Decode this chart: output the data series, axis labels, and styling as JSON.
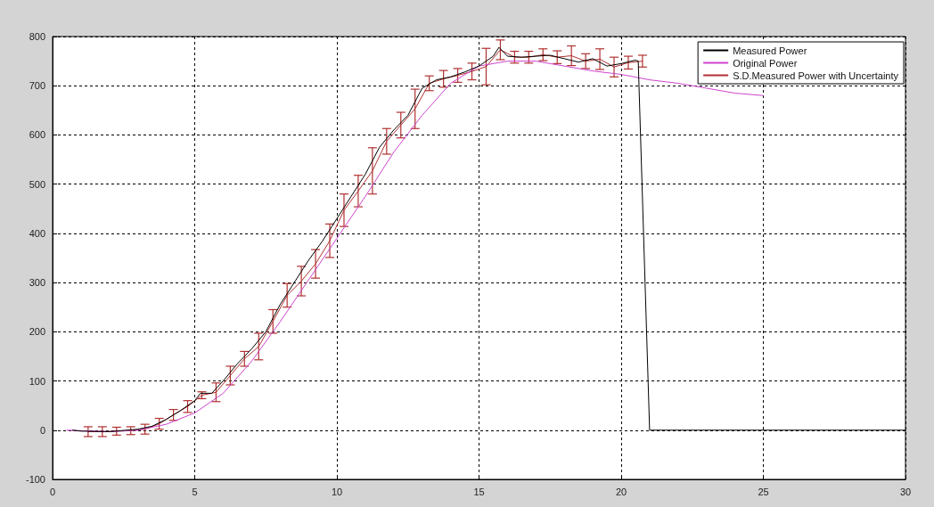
{
  "chart_data": {
    "type": "line",
    "xlim": [
      0,
      30
    ],
    "xticks": [
      0,
      5,
      10,
      15,
      20,
      25,
      30
    ],
    "ylim": [
      -100,
      800
    ],
    "yticks": [
      -100,
      0,
      100,
      200,
      300,
      400,
      500,
      600,
      700,
      800
    ],
    "grid": true,
    "legend": "top right",
    "marker": "none",
    "line_style": "solid",
    "series": [
      {
        "name": "Measured Power",
        "color": "#000000",
        "x": [
          0.7,
          1,
          2,
          3,
          3.5,
          4,
          4.5,
          5,
          5.2,
          5.6,
          6,
          6.5,
          7,
          7.5,
          8,
          8.5,
          9,
          9.5,
          10,
          10.5,
          11,
          11.5,
          12,
          12.5,
          13,
          13.5,
          14,
          14.5,
          15,
          15.5,
          15.7,
          16,
          16.5,
          17,
          17.5,
          18,
          18.5,
          19,
          19.5,
          20,
          20.5,
          20.6,
          21,
          30
        ],
        "values": [
          0,
          -2,
          -3,
          2,
          8,
          22,
          40,
          60,
          75,
          75,
          100,
          135,
          165,
          200,
          255,
          300,
          345,
          385,
          430,
          475,
          520,
          575,
          610,
          640,
          695,
          712,
          718,
          728,
          740,
          760,
          778,
          760,
          758,
          760,
          762,
          755,
          748,
          755,
          740,
          745,
          752,
          750,
          0,
          0
        ]
      },
      {
        "name": "Original Power",
        "color": "#cc44cc",
        "x": [
          0.5,
          2,
          3,
          4,
          5,
          6,
          7,
          8,
          9,
          10,
          11,
          12,
          13,
          14,
          15,
          16,
          17,
          18,
          19,
          20,
          21,
          22,
          23,
          24,
          25
        ],
        "values": [
          0,
          -3,
          0,
          12,
          35,
          75,
          140,
          220,
          305,
          390,
          475,
          565,
          640,
          705,
          740,
          750,
          750,
          740,
          730,
          723,
          712,
          705,
          695,
          685,
          680
        ]
      },
      {
        "name": "S.D.Measured Power with Uncertainty",
        "color": "#b03030",
        "x": [
          1.25,
          1.75,
          2.25,
          2.75,
          3.25,
          3.75,
          4.25,
          4.75,
          5.25,
          5.75,
          6.25,
          6.75,
          7.25,
          7.75,
          8.25,
          8.75,
          9.25,
          9.75,
          10.25,
          10.75,
          11.25,
          11.75,
          12.25,
          12.75,
          13.25,
          13.75,
          14.25,
          14.75,
          15.25,
          15.75,
          16.25,
          16.75,
          17.25,
          17.75,
          18.25,
          18.75,
          19.25,
          19.75,
          20.25,
          20.75
        ],
        "values": [
          -3,
          -3,
          -2,
          -1,
          2,
          13,
          31,
          48,
          71,
          77,
          111,
          145,
          170,
          221,
          274,
          303,
          338,
          385,
          447,
          486,
          527,
          587,
          620,
          653,
          705,
          714,
          721,
          729,
          739,
          773,
          758,
          758,
          763,
          758,
          761,
          750,
          754,
          738,
          747,
          750
        ],
        "errors": [
          10,
          10,
          8,
          8,
          10,
          11,
          11,
          12,
          7,
          19,
          19,
          15,
          27,
          24,
          24,
          30,
          29,
          34,
          33,
          32,
          47,
          26,
          26,
          40,
          15,
          17,
          14,
          17,
          37,
          20,
          12,
          12,
          12,
          13,
          20,
          15,
          21,
          20,
          13,
          12
        ]
      }
    ]
  }
}
